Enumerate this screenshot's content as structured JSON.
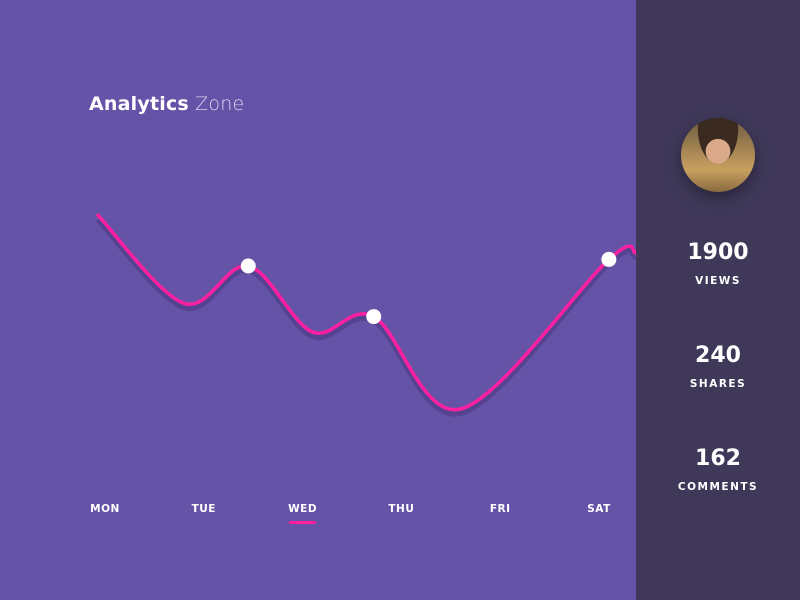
{
  "header": {
    "title_bold": "Analytics",
    "title_light": "Zone"
  },
  "chart_data": {
    "type": "line",
    "title": "",
    "categories": [
      "MON",
      "TUE",
      "WED",
      "THU",
      "FRI",
      "SAT"
    ],
    "active_category": "WED",
    "x_note_units": "day index (MON=0)",
    "points": [
      {
        "x": -0.07,
        "y": 93
      },
      {
        "x": 0.8,
        "y": 53
      },
      {
        "x": 1.45,
        "y": 70,
        "marker": true
      },
      {
        "x": 2.1,
        "y": 40
      },
      {
        "x": 2.72,
        "y": 47,
        "marker": true
      },
      {
        "x": 3.6,
        "y": 5
      },
      {
        "x": 5.1,
        "y": 73,
        "marker": true
      },
      {
        "x": 5.37,
        "y": 76
      }
    ],
    "ylim": [
      0,
      100
    ],
    "grid": false,
    "line_color": "#ff1fa0",
    "marker_color": "#ffffff"
  },
  "sidebar": {
    "stats": [
      {
        "value": "1900",
        "label": "VIEWS"
      },
      {
        "value": "240",
        "label": "SHARES"
      },
      {
        "value": "162",
        "label": "COMMENTS"
      }
    ]
  },
  "colors": {
    "background": "#6553a8",
    "sidebar": "#3f3859",
    "accent": "#ff1fa0"
  }
}
